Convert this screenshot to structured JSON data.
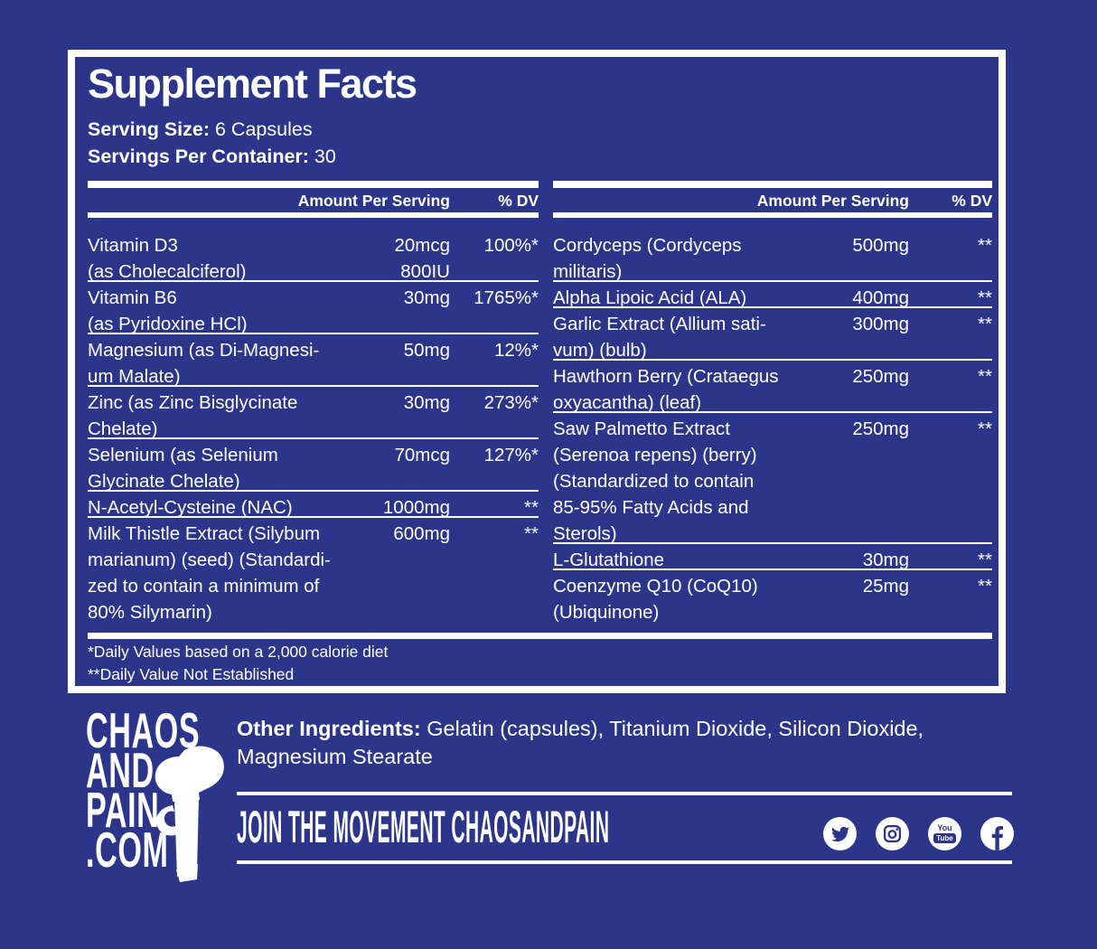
{
  "colors": {
    "background": "#2b3589",
    "foreground": "#ffffff"
  },
  "supplement_facts": {
    "title": "Supplement Facts",
    "serving_size_label": "Serving Size:",
    "serving_size_value": "6 Capsules",
    "servings_per_container_label": "Servings Per Container:",
    "servings_per_container_value": "30",
    "amount_header": "Amount Per Serving",
    "dv_header": "% DV",
    "left_rows": [
      {
        "name_lines": [
          "Vitamin D3",
          "(as Cholecalciferol)"
        ],
        "amount_lines": [
          "20mcg",
          "800IU"
        ],
        "dv": "100%*"
      },
      {
        "name_lines": [
          "Vitamin B6",
          "(as Pyridoxine HCl)"
        ],
        "amount_lines": [
          "30mg"
        ],
        "dv": "1765%*"
      },
      {
        "name_lines": [
          "Magnesium (as Di-Magnesi-",
          "um Malate)"
        ],
        "amount_lines": [
          "50mg"
        ],
        "dv": "12%*"
      },
      {
        "name_lines": [
          "Zinc (as Zinc Bisglycinate",
          "Chelate)"
        ],
        "amount_lines": [
          "30mg"
        ],
        "dv": "273%*"
      },
      {
        "name_lines": [
          "Selenium (as Selenium",
          "Glycinate Chelate)"
        ],
        "amount_lines": [
          "70mcg"
        ],
        "dv": "127%*"
      },
      {
        "name_lines": [
          "N-Acetyl-Cysteine (NAC)"
        ],
        "amount_lines": [
          "1000mg"
        ],
        "dv": "**"
      },
      {
        "name_lines": [
          "Milk Thistle Extract (Silybum",
          "marianum) (seed) (Standardi-",
          "zed to contain a minimum of",
          "80% Silymarin)"
        ],
        "amount_lines": [
          "600mg"
        ],
        "dv": "**"
      }
    ],
    "right_rows": [
      {
        "name_lines": [
          "Cordyceps (Cordyceps",
          "militaris)"
        ],
        "amount_lines": [
          "500mg"
        ],
        "dv": "**"
      },
      {
        "name_lines": [
          "Alpha Lipoic Acid (ALA)"
        ],
        "amount_lines": [
          "400mg"
        ],
        "dv": "**"
      },
      {
        "name_lines": [
          "Garlic Extract (Allium sati-",
          "vum) (bulb)"
        ],
        "amount_lines": [
          "300mg"
        ],
        "dv": "**"
      },
      {
        "name_lines": [
          "Hawthorn Berry (Crataegus",
          "oxyacantha) (leaf)"
        ],
        "amount_lines": [
          "250mg"
        ],
        "dv": "**"
      },
      {
        "name_lines": [
          "Saw Palmetto Extract",
          "(Serenoa repens) (berry)",
          "(Standardized to contain",
          "85-95% Fatty Acids and",
          "Sterols)"
        ],
        "amount_lines": [
          "250mg"
        ],
        "dv": "**"
      },
      {
        "name_lines": [
          "L-Glutathione"
        ],
        "amount_lines": [
          "30mg"
        ],
        "dv": "**"
      },
      {
        "name_lines": [
          "Coenzyme Q10 (CoQ10)",
          "(Ubiquinone)"
        ],
        "amount_lines": [
          "25mg"
        ],
        "dv": "**"
      }
    ],
    "footnote_1": "*Daily Values based on a 2,000 calorie diet",
    "footnote_2": "**Daily Value Not Established"
  },
  "footer": {
    "logo_lines": [
      "CHAOS",
      "AND",
      "PAIN",
      ".COM"
    ],
    "other_ingredients_label": "Other Ingredients:",
    "other_ingredients_value": " Gelatin (capsules), Titanium Dioxide, Silicon Dioxide, Magnesium Stearate",
    "join_text": "JOIN THE MOVEMENT CHAOSANDPAIN",
    "social_icons": [
      "twitter",
      "instagram",
      "youtube",
      "facebook"
    ],
    "youtube_icon_text_top": "You",
    "youtube_icon_text_bottom": "Tube"
  }
}
